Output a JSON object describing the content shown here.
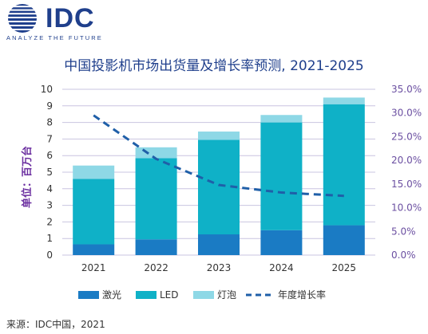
{
  "header": {
    "logo_text": "IDC",
    "logo_tagline": "ANALYZE THE FUTURE"
  },
  "source": "来源：IDC中国，2021",
  "colors": {
    "laser": "#1a7bc4",
    "led": "#0fb1c7",
    "bulb": "#8ed8e6",
    "growth": "#1f5fa8",
    "title": "#1f3f8c"
  },
  "chart_data": {
    "type": "bar",
    "stacked": true,
    "title": "中国投影机市场出货量及增长率预测, 2021-2025",
    "ylabel": "单位：百万台",
    "ylim": [
      0,
      10
    ],
    "y_ticks": [
      0,
      1,
      2,
      3,
      4,
      5,
      6,
      7,
      8,
      9,
      10
    ],
    "y2lim": [
      0,
      35
    ],
    "y2_ticks": [
      "0.0%",
      "5.0%",
      "10.0%",
      "15.0%",
      "20.0%",
      "25.0%",
      "30.0%",
      "35.0%"
    ],
    "categories": [
      "2021",
      "2022",
      "2023",
      "2024",
      "2025"
    ],
    "series": [
      {
        "name": "激光",
        "values": [
          0.65,
          0.95,
          1.25,
          1.5,
          1.8
        ]
      },
      {
        "name": "LED",
        "values": [
          3.95,
          4.9,
          5.7,
          6.5,
          7.3
        ]
      },
      {
        "name": "灯泡",
        "values": [
          0.8,
          0.65,
          0.5,
          0.45,
          0.4
        ]
      }
    ],
    "line_series": {
      "name": "年度增长率",
      "values": [
        29.5,
        20.3,
        14.8,
        13.2,
        12.5
      ],
      "axis": "right",
      "style": "dashed"
    },
    "grid": true,
    "legend_position": "bottom"
  }
}
